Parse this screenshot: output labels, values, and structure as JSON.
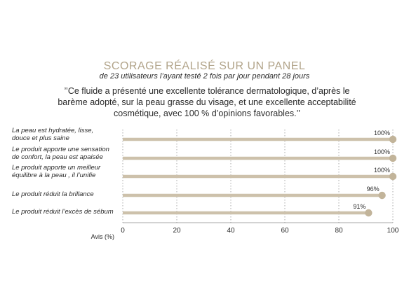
{
  "title": "SCORAGE RÉALISÉ SUR UN PANEL",
  "subtitle": "de 23 utilisateurs l’ayant testé 2 fois par jour pendant 28 jours",
  "quote": "’’Ce fluide a présenté une excellente tolérance dermatologique, d’après le barème adopté, sur la peau grasse du visage, et une excellente acceptabilité cosmétique, avec 100 % d’opinions favorables.’’",
  "colors": {
    "bar": "#cdc1ab",
    "dot": "#c2b49a",
    "title": "#b2a48a"
  },
  "chart_data": {
    "type": "bar",
    "orientation": "horizontal",
    "categories": [
      [
        "La peau est hydratée, lisse,",
        "douce et plus saine"
      ],
      [
        "Le produit apporte une sensation",
        "de confort, la peau est apaisée"
      ],
      [
        "Le produit apporte un meilleur",
        "équilibre à la peau , il l’unifie"
      ],
      [
        "Le produit réduit la brillance"
      ],
      [
        "Le produit réduit l’excès de sébum"
      ]
    ],
    "values": [
      100,
      100,
      100,
      96,
      91
    ],
    "value_labels": [
      "100%",
      "100%",
      "100%",
      "96%",
      "91%"
    ],
    "xlabel": "Avis (%)",
    "xlim": [
      0,
      100
    ],
    "xticks": [
      0,
      20,
      40,
      60,
      80,
      100
    ],
    "grid": true
  }
}
